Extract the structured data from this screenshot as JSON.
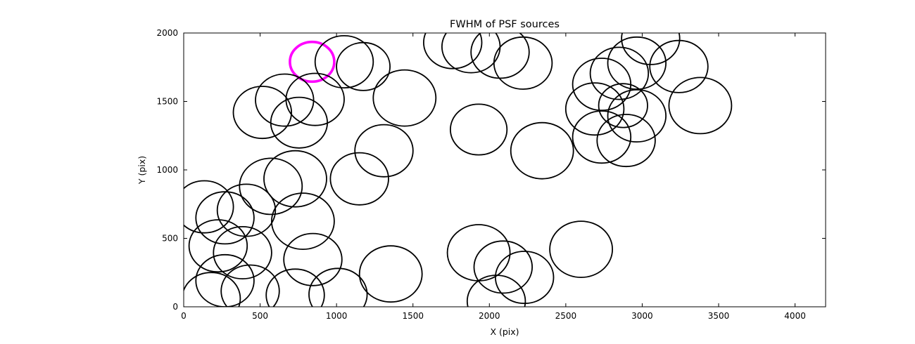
{
  "chart_data": {
    "type": "scatter",
    "title": "FWHM of PSF sources",
    "xlabel": "X (pix)",
    "ylabel": "Y (pix)",
    "xlim": [
      0,
      4200
    ],
    "ylim": [
      0,
      2000
    ],
    "xticks": [
      0,
      500,
      1000,
      1500,
      2000,
      2500,
      3000,
      3500,
      4000
    ],
    "yticks": [
      0,
      500,
      1000,
      1500,
      2000
    ],
    "grid": false,
    "legend": null,
    "marker_style": "open-circle",
    "colors": {
      "circle": "#000000",
      "highlight": "#ff00ff",
      "axes": "#000000",
      "background": "#ffffff"
    },
    "circles": [
      {
        "x": 840,
        "y": 1790,
        "r": 145,
        "highlight": true
      },
      {
        "x": 1050,
        "y": 1790,
        "r": 190
      },
      {
        "x": 1175,
        "y": 1755,
        "r": 175
      },
      {
        "x": 660,
        "y": 1510,
        "r": 190
      },
      {
        "x": 860,
        "y": 1515,
        "r": 190
      },
      {
        "x": 515,
        "y": 1420,
        "r": 190
      },
      {
        "x": 755,
        "y": 1345,
        "r": 185
      },
      {
        "x": 1445,
        "y": 1525,
        "r": 205
      },
      {
        "x": 1760,
        "y": 1930,
        "r": 190
      },
      {
        "x": 1880,
        "y": 1900,
        "r": 190
      },
      {
        "x": 2070,
        "y": 1860,
        "r": 190
      },
      {
        "x": 2220,
        "y": 1780,
        "r": 190
      },
      {
        "x": 1310,
        "y": 1140,
        "r": 190
      },
      {
        "x": 1150,
        "y": 935,
        "r": 190
      },
      {
        "x": 1930,
        "y": 1295,
        "r": 185
      },
      {
        "x": 2345,
        "y": 1140,
        "r": 205
      },
      {
        "x": 2735,
        "y": 1625,
        "r": 190
      },
      {
        "x": 2850,
        "y": 1705,
        "r": 190
      },
      {
        "x": 2965,
        "y": 1780,
        "r": 190
      },
      {
        "x": 2690,
        "y": 1445,
        "r": 190
      },
      {
        "x": 2875,
        "y": 1470,
        "r": 160
      },
      {
        "x": 2735,
        "y": 1240,
        "r": 190
      },
      {
        "x": 2895,
        "y": 1215,
        "r": 190
      },
      {
        "x": 2965,
        "y": 1395,
        "r": 190
      },
      {
        "x": 3055,
        "y": 1960,
        "r": 190
      },
      {
        "x": 3240,
        "y": 1755,
        "r": 190
      },
      {
        "x": 3380,
        "y": 1470,
        "r": 205
      },
      {
        "x": 135,
        "y": 730,
        "r": 190
      },
      {
        "x": 270,
        "y": 650,
        "r": 190
      },
      {
        "x": 410,
        "y": 705,
        "r": 190
      },
      {
        "x": 225,
        "y": 445,
        "r": 190
      },
      {
        "x": 385,
        "y": 395,
        "r": 190
      },
      {
        "x": 570,
        "y": 880,
        "r": 205
      },
      {
        "x": 730,
        "y": 935,
        "r": 205
      },
      {
        "x": 780,
        "y": 625,
        "r": 205
      },
      {
        "x": 845,
        "y": 345,
        "r": 190
      },
      {
        "x": 270,
        "y": 190,
        "r": 190
      },
      {
        "x": 435,
        "y": 115,
        "r": 190
      },
      {
        "x": 180,
        "y": 60,
        "r": 190
      },
      {
        "x": 730,
        "y": 85,
        "r": 190
      },
      {
        "x": 1010,
        "y": 90,
        "r": 190
      },
      {
        "x": 1355,
        "y": 240,
        "r": 205
      },
      {
        "x": 1930,
        "y": 395,
        "r": 205
      },
      {
        "x": 2090,
        "y": 290,
        "r": 190
      },
      {
        "x": 2230,
        "y": 215,
        "r": 190
      },
      {
        "x": 2045,
        "y": 40,
        "r": 190
      },
      {
        "x": 2600,
        "y": 420,
        "r": 205
      }
    ]
  }
}
